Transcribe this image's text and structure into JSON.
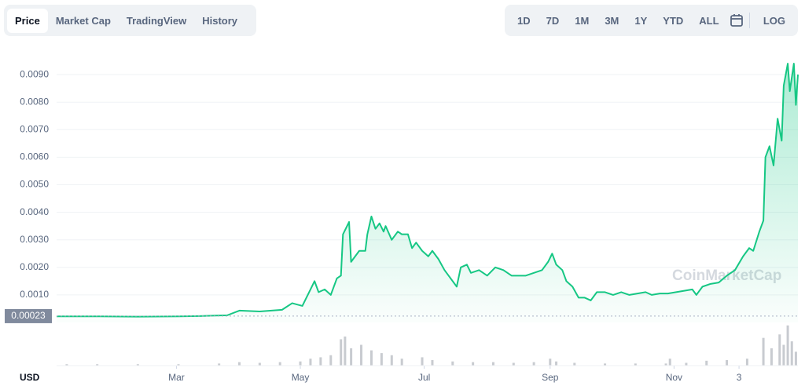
{
  "tabs": [
    {
      "label": "Price",
      "selected": true
    },
    {
      "label": "Market Cap",
      "selected": false
    },
    {
      "label": "TradingView",
      "selected": false
    },
    {
      "label": "History",
      "selected": false
    }
  ],
  "range_buttons": [
    "1D",
    "7D",
    "1M",
    "3M",
    "1Y",
    "YTD",
    "ALL"
  ],
  "log_button": "LOG",
  "chart_data": {
    "type": "area",
    "watermark": "CoinMarketCap",
    "currency": "USD",
    "color": "#16c784",
    "grid": true,
    "xlim": [
      0,
      365
    ],
    "ylim": [
      0,
      0.01
    ],
    "xticks": [
      {
        "value": 59,
        "label": "Mar"
      },
      {
        "value": 120,
        "label": "May"
      },
      {
        "value": 181,
        "label": "Jul"
      },
      {
        "value": 243,
        "label": "Sep"
      },
      {
        "value": 304,
        "label": "Nov"
      },
      {
        "value": 336,
        "label": "3"
      }
    ],
    "yticks": [
      {
        "value": 0.001,
        "label": "0.0010"
      },
      {
        "value": 0.002,
        "label": "0.0020"
      },
      {
        "value": 0.003,
        "label": "0.0030"
      },
      {
        "value": 0.004,
        "label": "0.0040"
      },
      {
        "value": 0.005,
        "label": "0.0050"
      },
      {
        "value": 0.006,
        "label": "0.0060"
      },
      {
        "value": 0.007,
        "label": "0.0070"
      },
      {
        "value": 0.008,
        "label": "0.0080"
      },
      {
        "value": 0.009,
        "label": "0.0090"
      }
    ],
    "reference": {
      "value": 0.00023,
      "label": "0.00023"
    },
    "series": [
      {
        "name": "Price",
        "x": [
          0,
          20,
          40,
          60,
          70,
          78,
          84,
          90,
          100,
          111,
          116,
          121,
          125,
          127,
          129,
          132,
          135,
          138,
          140,
          141,
          143,
          144,
          145,
          147,
          149,
          152,
          153,
          155,
          157,
          159,
          161,
          162,
          165,
          168,
          170,
          173,
          175,
          177,
          180,
          183,
          185,
          188,
          191,
          193,
          197,
          199,
          202,
          204,
          208,
          212,
          216,
          220,
          224,
          228,
          231,
          235,
          239,
          242,
          244,
          246,
          249,
          251,
          254,
          257,
          260,
          263,
          266,
          270,
          274,
          278,
          282,
          286,
          290,
          293,
          297,
          301,
          305,
          309,
          313,
          315,
          318,
          322,
          326,
          330,
          334,
          338,
          341,
          343,
          346,
          348,
          349,
          351,
          353,
          355,
          357,
          358,
          360,
          361,
          363,
          364,
          365
        ],
        "values": [
          0.00022,
          0.00022,
          0.00021,
          0.00022,
          0.00023,
          0.00025,
          0.00026,
          0.00043,
          0.0004,
          0.00046,
          0.0007,
          0.0006,
          0.0012,
          0.0015,
          0.0011,
          0.0012,
          0.001,
          0.0016,
          0.0017,
          0.0032,
          0.0035,
          0.00365,
          0.0022,
          0.0024,
          0.0026,
          0.0026,
          0.0032,
          0.00385,
          0.0034,
          0.0036,
          0.0033,
          0.0035,
          0.003,
          0.0033,
          0.0032,
          0.0032,
          0.0027,
          0.0029,
          0.0026,
          0.0024,
          0.0026,
          0.0023,
          0.0019,
          0.0017,
          0.0013,
          0.002,
          0.0021,
          0.0018,
          0.0019,
          0.0017,
          0.002,
          0.0019,
          0.0017,
          0.0017,
          0.0017,
          0.0018,
          0.0019,
          0.0022,
          0.0025,
          0.0021,
          0.0019,
          0.0015,
          0.0013,
          0.0009,
          0.0009,
          0.0008,
          0.0011,
          0.0011,
          0.001,
          0.0011,
          0.001,
          0.00105,
          0.0011,
          0.001,
          0.00105,
          0.00105,
          0.0011,
          0.00115,
          0.0012,
          0.001,
          0.0013,
          0.0014,
          0.00145,
          0.0017,
          0.0019,
          0.0024,
          0.0027,
          0.0026,
          0.0033,
          0.0037,
          0.006,
          0.0064,
          0.0057,
          0.0074,
          0.0066,
          0.0086,
          0.0094,
          0.0084,
          0.0094,
          0.0079,
          0.009
        ]
      }
    ],
    "volume": {
      "color": "#c8cbd0",
      "ylim": [
        0,
        60
      ],
      "x": [
        5,
        20,
        40,
        60,
        80,
        90,
        100,
        110,
        120,
        125,
        130,
        135,
        140,
        142,
        145,
        150,
        155,
        160,
        165,
        170,
        180,
        185,
        195,
        205,
        215,
        225,
        235,
        243,
        246,
        255,
        270,
        285,
        300,
        302,
        310,
        320,
        330,
        340,
        348,
        352,
        356,
        358,
        360,
        362,
        364
      ],
      "values": [
        2,
        2,
        2,
        2,
        3,
        5,
        4,
        5,
        6,
        10,
        12,
        15,
        38,
        42,
        25,
        30,
        22,
        18,
        15,
        10,
        12,
        8,
        6,
        5,
        5,
        4,
        5,
        10,
        6,
        4,
        3,
        3,
        3,
        10,
        4,
        7,
        8,
        10,
        40,
        25,
        45,
        30,
        58,
        35,
        20
      ]
    }
  }
}
